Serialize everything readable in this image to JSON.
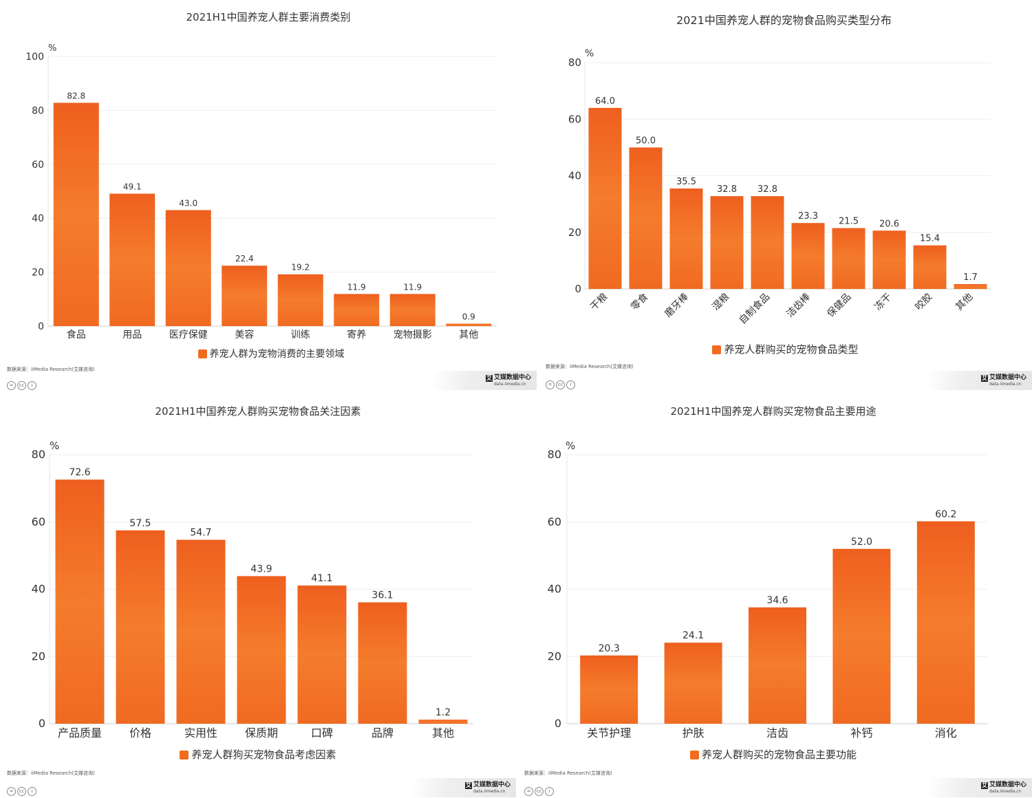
{
  "chart_data": [
    {
      "type": "bar",
      "title": "2021H1中国养宠人群主要消费类别",
      "unit": "%",
      "categories": [
        "食品",
        "用品",
        "医疗保健",
        "美容",
        "训练",
        "寄养",
        "宠物摄影",
        "其他"
      ],
      "series": [
        {
          "name": "养宠人群为宠物消费的主要领域",
          "values": [
            82.8,
            49.1,
            43.0,
            22.4,
            19.2,
            11.9,
            11.9,
            0.9
          ]
        }
      ],
      "value_labels": [
        "82.8",
        "49.1",
        "43.0",
        "22.4",
        "19.2",
        "11.9",
        "11.9",
        "0.9"
      ],
      "ylim": [
        0,
        100
      ],
      "yticks": [
        0,
        20,
        40,
        60,
        80,
        100
      ],
      "xlabel": "",
      "ylabel": "%",
      "grid": true,
      "legend": "bottom-center"
    },
    {
      "type": "bar",
      "title": "2021中国养宠人群的宠物食品购买类型分布",
      "unit": "%",
      "categories": [
        "干粮",
        "零食",
        "磨牙棒",
        "湿粮",
        "自制食品",
        "洁齿棒",
        "保健品",
        "冻干",
        "咬胶",
        "其他"
      ],
      "series": [
        {
          "name": "养宠人群购买的宠物食品类型",
          "values": [
            64.0,
            50.0,
            35.5,
            32.8,
            32.8,
            23.3,
            21.5,
            20.6,
            15.4,
            1.7
          ]
        }
      ],
      "value_labels": [
        "64.0",
        "50.0",
        "35.5",
        "32.8",
        "32.8",
        "23.3",
        "21.5",
        "20.6",
        "15.4",
        "1.7"
      ],
      "ylim": [
        0,
        80
      ],
      "yticks": [
        0,
        20,
        40,
        60,
        80
      ],
      "xlabel": "",
      "ylabel": "%",
      "grid": true,
      "legend": "bottom-center"
    },
    {
      "type": "bar",
      "title": "2021H1中国养宠人群购买宠物食品关注因素",
      "unit": "%",
      "categories": [
        "产品质量",
        "价格",
        "实用性",
        "保质期",
        "口碑",
        "品牌",
        "其他"
      ],
      "series": [
        {
          "name": "养宠人群狗买宠物食品考虑因素",
          "values": [
            72.6,
            57.5,
            54.7,
            43.9,
            41.1,
            36.1,
            1.2
          ]
        }
      ],
      "value_labels": [
        "72.6",
        "57.5",
        "54.7",
        "43.9",
        "41.1",
        "36.1",
        "1.2"
      ],
      "ylim": [
        0,
        80
      ],
      "yticks": [
        0,
        20,
        40,
        60,
        80
      ],
      "xlabel": "",
      "ylabel": "%",
      "grid": true,
      "legend": "bottom-center"
    },
    {
      "type": "bar",
      "title": "2021H1中国养宠人群购买宠物食品主要用途",
      "unit": "%",
      "categories": [
        "关节护理",
        "护肤",
        "洁齿",
        "补钙",
        "消化"
      ],
      "series": [
        {
          "name": "养宠人群购买的宠物食品主要功能",
          "values": [
            20.3,
            24.1,
            34.6,
            52.0,
            60.2
          ]
        }
      ],
      "value_labels": [
        "20.3",
        "24.1",
        "34.6",
        "52.0",
        "60.2"
      ],
      "ylim": [
        0,
        80
      ],
      "yticks": [
        0,
        20,
        40,
        60,
        80
      ],
      "xlabel": "",
      "ylabel": "%",
      "grid": true,
      "legend": "bottom-center"
    }
  ],
  "footer": {
    "source": "数据来源：iiMedia Research(艾媒咨询)",
    "brand_mark": "艾",
    "brand_name": "艾媒数据中心",
    "brand_url": "data.iimedia.cn",
    "cc_icons": [
      "=",
      "cc",
      "i"
    ]
  },
  "colors": {
    "bar_top": "#ee5f1f",
    "bar_mid": "#f57c2c",
    "bar_bottom": "#f06a22",
    "grid": "#eeeeee",
    "axis": "#cccccc"
  }
}
